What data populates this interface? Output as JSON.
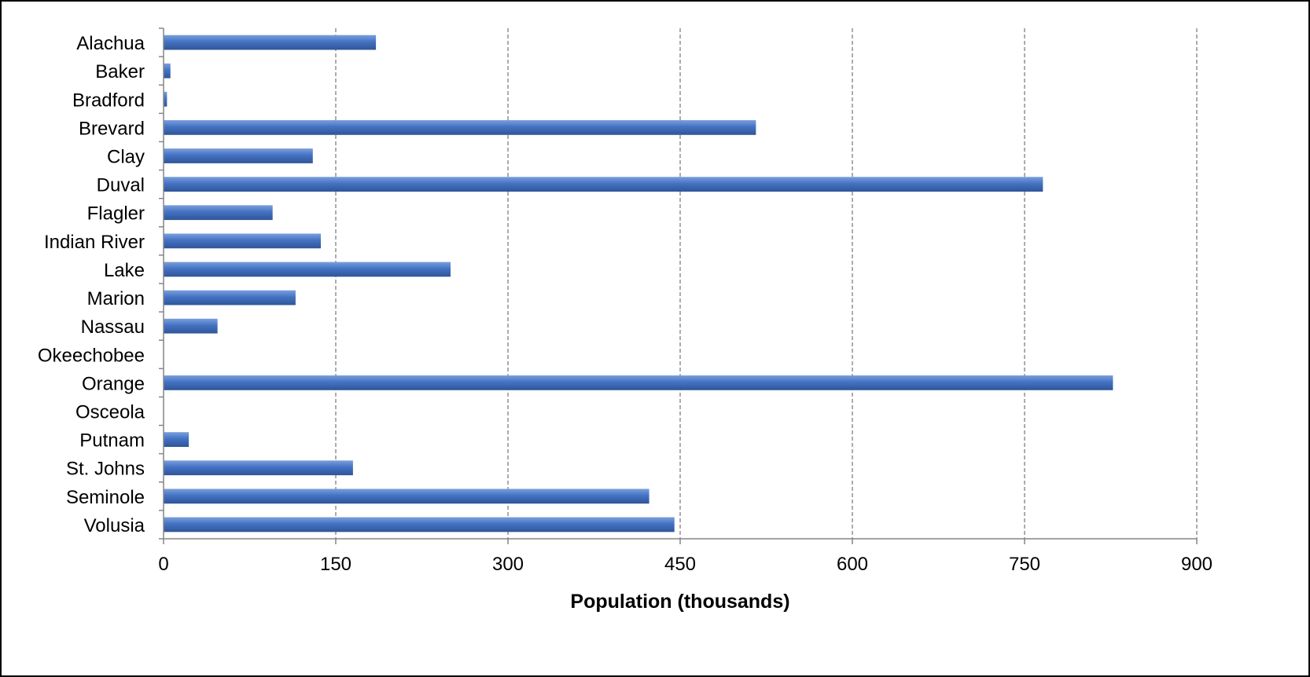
{
  "chart_data": {
    "type": "bar",
    "orientation": "horizontal",
    "title": "",
    "xlabel": "Population (thousands)",
    "ylabel": "",
    "xlim": [
      0,
      900
    ],
    "x_ticks": [
      "0",
      "150",
      "300",
      "450",
      "600",
      "750",
      "900"
    ],
    "x_tick_values": [
      0,
      150,
      300,
      450,
      600,
      750,
      900
    ],
    "grid": "vertical dashed gridlines at major ticks",
    "legend": "none",
    "categories": [
      "Alachua",
      "Baker",
      "Bradford",
      "Brevard",
      "Clay",
      "Duval",
      "Flagler",
      "Indian River",
      "Lake",
      "Marion",
      "Nassau",
      "Okeechobee",
      "Orange",
      "Osceola",
      "Putnam",
      "St. Johns",
      "Seminole",
      "Volusia"
    ],
    "values": [
      185,
      6,
      3,
      516,
      130,
      766,
      95,
      137,
      250,
      115,
      47,
      0,
      827,
      0,
      22,
      165,
      423,
      445
    ],
    "bar_color": "#4472C4",
    "bar_color_dark": "#2F5597",
    "bar_color_light": "#7AA0DB",
    "grid_color": "#808080",
    "axis_color": "#868686"
  }
}
